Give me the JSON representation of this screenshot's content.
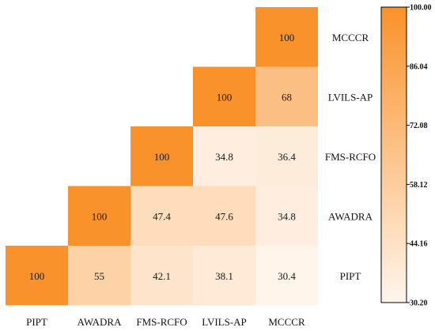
{
  "chart_data": {
    "type": "heatmap",
    "title": "",
    "xlabel": "",
    "ylabel": "",
    "columns": [
      "PIPT",
      "AWADRA",
      "FMS-RCFO",
      "LVILS-AP",
      "MCCCR"
    ],
    "rows": [
      "MCCCR",
      "LVILS-AP",
      "FMS-RCFO",
      "AWADRA",
      "PIPT"
    ],
    "cells": [
      {
        "row": "MCCCR",
        "col": "MCCCR",
        "value": 100,
        "label": "100"
      },
      {
        "row": "LVILS-AP",
        "col": "LVILS-AP",
        "value": 100,
        "label": "100"
      },
      {
        "row": "LVILS-AP",
        "col": "MCCCR",
        "value": 68,
        "label": "68"
      },
      {
        "row": "FMS-RCFO",
        "col": "FMS-RCFO",
        "value": 100,
        "label": "100"
      },
      {
        "row": "FMS-RCFO",
        "col": "LVILS-AP",
        "value": 34.8,
        "label": "34.8"
      },
      {
        "row": "FMS-RCFO",
        "col": "MCCCR",
        "value": 36.4,
        "label": "36.4"
      },
      {
        "row": "AWADRA",
        "col": "AWADRA",
        "value": 100,
        "label": "100"
      },
      {
        "row": "AWADRA",
        "col": "FMS-RCFO",
        "value": 47.4,
        "label": "47.4"
      },
      {
        "row": "AWADRA",
        "col": "LVILS-AP",
        "value": 47.6,
        "label": "47.6"
      },
      {
        "row": "AWADRA",
        "col": "MCCCR",
        "value": 34.8,
        "label": "34.8"
      },
      {
        "row": "PIPT",
        "col": "PIPT",
        "value": 100,
        "label": "100"
      },
      {
        "row": "PIPT",
        "col": "AWADRA",
        "value": 55,
        "label": "55"
      },
      {
        "row": "PIPT",
        "col": "FMS-RCFO",
        "value": 42.1,
        "label": "42.1"
      },
      {
        "row": "PIPT",
        "col": "LVILS-AP",
        "value": 38.1,
        "label": "38.1"
      },
      {
        "row": "PIPT",
        "col": "MCCCR",
        "value": 30.4,
        "label": "30.4"
      }
    ],
    "colorbar": {
      "min": 30.2,
      "max": 100,
      "ticks": [
        "100.00",
        "86.04",
        "72.08",
        "58.12",
        "44.16",
        "30.20"
      ],
      "tick_values": [
        100,
        86.04,
        72.08,
        58.12,
        44.16,
        30.2
      ],
      "color_low": "#fff5ec",
      "color_high": "#f9922a"
    },
    "legend_placement": "right",
    "grid": false
  }
}
